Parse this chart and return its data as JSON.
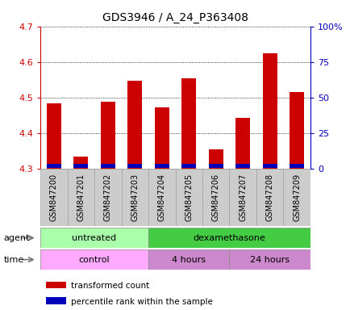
{
  "title": "GDS3946 / A_24_P363408",
  "samples": [
    "GSM847200",
    "GSM847201",
    "GSM847202",
    "GSM847203",
    "GSM847204",
    "GSM847205",
    "GSM847206",
    "GSM847207",
    "GSM847208",
    "GSM847209"
  ],
  "transformed_count": [
    4.485,
    4.335,
    4.488,
    4.548,
    4.472,
    4.555,
    4.355,
    4.443,
    4.625,
    4.515
  ],
  "percentile_rank_pct": [
    10,
    5,
    10,
    12,
    10,
    14,
    8,
    10,
    14,
    12
  ],
  "baseline": 4.3,
  "ylim_left": [
    4.3,
    4.7
  ],
  "ylim_right": [
    0,
    100
  ],
  "yticks_left": [
    4.3,
    4.4,
    4.5,
    4.6,
    4.7
  ],
  "yticks_right": [
    0,
    25,
    50,
    75,
    100
  ],
  "ytick_labels_right": [
    "0",
    "25",
    "50",
    "75",
    "100%"
  ],
  "bar_color_red": "#cc0000",
  "bar_color_blue": "#0000bb",
  "bar_width": 0.55,
  "agent_untreated_color": "#aaffaa",
  "agent_dex_color": "#44cc44",
  "time_control_color": "#ffaaff",
  "time_hours_color": "#cc88cc",
  "bg_color_xtick": "#cccccc",
  "ylabel_left_color": "#cc0000",
  "ylabel_right_color": "#0000bb",
  "title_fontsize": 10,
  "tick_label_fontsize": 7,
  "annot_fontsize": 8,
  "legend_fontsize": 7.5
}
